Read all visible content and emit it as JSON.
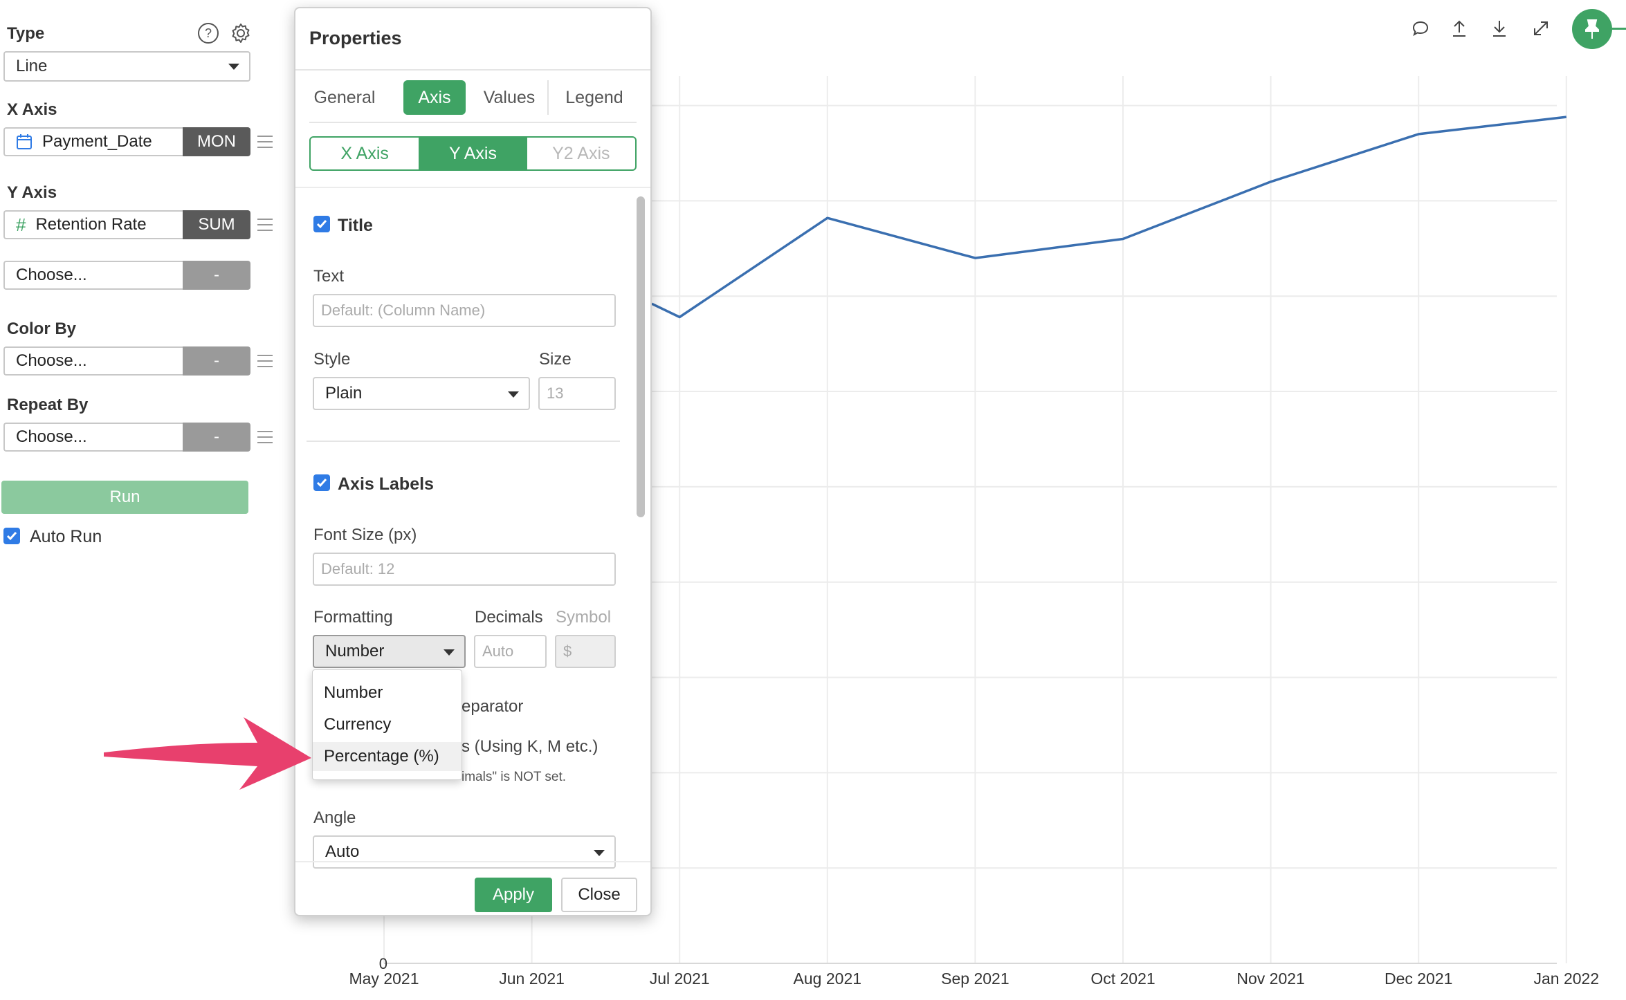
{
  "left_panel": {
    "type": {
      "label": "Type",
      "value": "Line"
    },
    "x_axis": {
      "label": "X Axis",
      "field": "Payment_Date",
      "aggregation": "MON"
    },
    "y_axis": {
      "label": "Y Axis",
      "field": "Retention Rate",
      "aggregation": "SUM"
    },
    "y_axis_extra": {
      "placeholder": "Choose...",
      "aggregation": "-"
    },
    "color_by": {
      "label": "Color By",
      "placeholder": "Choose...",
      "aggregation": "-"
    },
    "repeat_by": {
      "label": "Repeat By",
      "placeholder": "Choose...",
      "aggregation": "-"
    },
    "run_label": "Run",
    "auto_run_label": "Auto Run",
    "auto_run_checked": true
  },
  "toolbar": {
    "icons": [
      "comment-icon",
      "upload-icon",
      "download-icon",
      "expand-icon",
      "pin-icon"
    ]
  },
  "dialog": {
    "title": "Properties",
    "tabs": [
      "General",
      "Axis",
      "Values",
      "Legend"
    ],
    "active_tab": "Axis",
    "axis_tabs": [
      "X Axis",
      "Y Axis",
      "Y2 Axis"
    ],
    "active_axis_tab": "Y Axis",
    "title_section": {
      "checkbox_label": "Title",
      "checked": true,
      "text_label": "Text",
      "text_placeholder": "Default: (Column Name)",
      "style_label": "Style",
      "style_value": "Plain",
      "size_label": "Size",
      "size_placeholder": "13"
    },
    "axis_labels_section": {
      "checkbox_label": "Axis Labels",
      "checked": true,
      "font_size_label": "Font Size (px)",
      "font_size_placeholder": "Default: 12",
      "formatting_label": "Formatting",
      "formatting_value": "Number",
      "decimals_label": "Decimals",
      "decimals_placeholder": "Auto",
      "symbol_label": "Symbol",
      "symbol_placeholder": "$",
      "separator_fragment": "eparator",
      "abbrev_fragment": "s (Using K, M etc.)",
      "note_fragment": "imals\" is NOT set.",
      "angle_label": "Angle",
      "angle_value": "Auto"
    },
    "formatting_options": [
      "Number",
      "Currency",
      "Percentage (%)"
    ],
    "highlighted_option": "Percentage (%)",
    "apply_label": "Apply",
    "close_label": "Close"
  },
  "chart_data": {
    "type": "line",
    "x": [
      "May 2021",
      "Jun 2021",
      "Jul 2021",
      "Aug 2021",
      "Sep 2021",
      "Oct 2021",
      "Nov 2021",
      "Dec 2021",
      "Jan 2022"
    ],
    "y_zero_label": "0",
    "series": [
      {
        "color": "#3a6fb0",
        "points": [
          {
            "x": "Jul 2021",
            "y": 6.78
          },
          {
            "x": "Aug 2021",
            "y": 7.82
          },
          {
            "x": "Sep 2021",
            "y": 7.4
          },
          {
            "x": "Oct 2021",
            "y": 7.6
          },
          {
            "x": "Nov 2021",
            "y": 8.2
          },
          {
            "x": "Dec 2021",
            "y": 8.7
          },
          {
            "x": "Jan 2022",
            "y": 8.88
          }
        ],
        "entry_y_at_panel_edge": 6.92
      }
    ],
    "ylim": [
      0,
      9.2
    ],
    "gridlines_y": [
      1,
      2,
      3,
      4,
      5,
      6,
      7,
      8,
      9
    ],
    "grid": true
  },
  "colors": {
    "accent_green": "#3fa364",
    "line_blue": "#3a6fb0",
    "arrow_pink": "#e8406d",
    "checkbox_blue": "#2f7be5"
  }
}
